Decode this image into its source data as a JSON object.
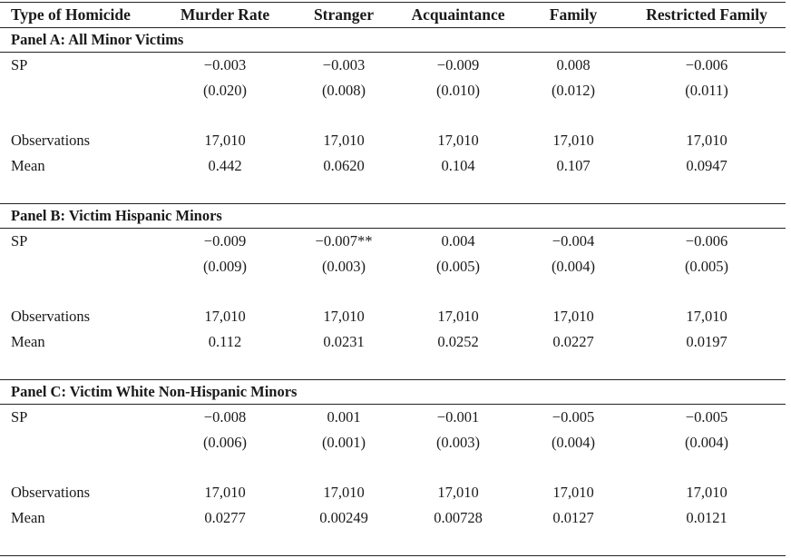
{
  "table": {
    "headers": [
      "Type of Homicide",
      "Murder Rate",
      "Stranger",
      "Acquaintance",
      "Family",
      "Restricted Family"
    ],
    "panels": [
      {
        "title": "Panel A: All Minor Victims",
        "rows": [
          {
            "label": "SP",
            "values": [
              "−0.003",
              "−0.003",
              "−0.009",
              "0.008",
              "−0.006"
            ]
          },
          {
            "label": "",
            "values": [
              "(0.020)",
              "(0.008)",
              "(0.010)",
              "(0.012)",
              "(0.011)"
            ]
          },
          {
            "label": "Observations",
            "values": [
              "17,010",
              "17,010",
              "17,010",
              "17,010",
              "17,010"
            ]
          },
          {
            "label": "Mean",
            "values": [
              "0.442",
              "0.0620",
              "0.104",
              "0.107",
              "0.0947"
            ]
          }
        ]
      },
      {
        "title": "Panel B: Victim Hispanic Minors",
        "rows": [
          {
            "label": "SP",
            "values": [
              "−0.009",
              "−0.007**",
              "0.004",
              "−0.004",
              "−0.006"
            ]
          },
          {
            "label": "",
            "values": [
              "(0.009)",
              "(0.003)",
              "(0.005)",
              "(0.004)",
              "(0.005)"
            ]
          },
          {
            "label": "Observations",
            "values": [
              "17,010",
              "17,010",
              "17,010",
              "17,010",
              "17,010"
            ]
          },
          {
            "label": "Mean",
            "values": [
              "0.112",
              "0.0231",
              "0.0252",
              "0.0227",
              "0.0197"
            ]
          }
        ]
      },
      {
        "title": "Panel C: Victim White Non-Hispanic Minors",
        "rows": [
          {
            "label": "SP",
            "values": [
              "−0.008",
              "0.001",
              "−0.001",
              "−0.005",
              "−0.005"
            ]
          },
          {
            "label": "",
            "values": [
              "(0.006)",
              "(0.001)",
              "(0.003)",
              "(0.004)",
              "(0.004)"
            ]
          },
          {
            "label": "Observations",
            "values": [
              "17,010",
              "17,010",
              "17,010",
              "17,010",
              "17,010"
            ]
          },
          {
            "label": "Mean",
            "values": [
              "0.0277",
              "0.00249",
              "0.00728",
              "0.0127",
              "0.0121"
            ]
          }
        ]
      }
    ]
  }
}
